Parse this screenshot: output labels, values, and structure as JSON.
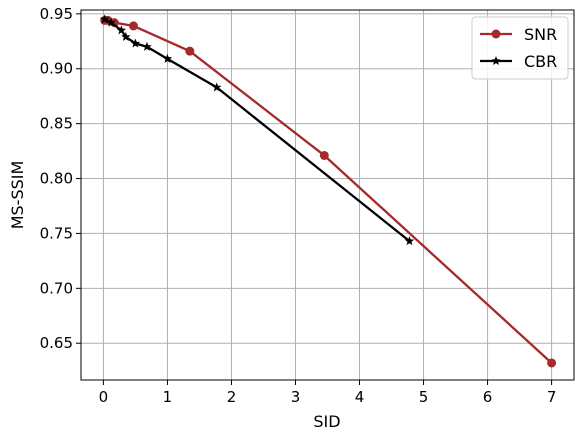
{
  "chart_data": {
    "type": "line",
    "title": "",
    "xlabel": "SID",
    "ylabel": "MS-SSIM",
    "xlim": [
      -0.35,
      7.35
    ],
    "ylim": [
      0.6165,
      0.9535
    ],
    "xticks": [
      0,
      1,
      2,
      3,
      4,
      5,
      6,
      7
    ],
    "xtick_labels": [
      "0",
      "1",
      "2",
      "3",
      "4",
      "5",
      "6",
      "7"
    ],
    "yticks": [
      0.65,
      0.7,
      0.75,
      0.8,
      0.85,
      0.9,
      0.95
    ],
    "ytick_labels": [
      "0.65",
      "0.70",
      "0.75",
      "0.80",
      "0.85",
      "0.90",
      "0.95"
    ],
    "grid": true,
    "legend_position": "top-right",
    "series": [
      {
        "name": "SNR",
        "color": "#a52a2a",
        "marker": "circle",
        "x": [
          0.02,
          0.07,
          0.17,
          0.47,
          1.35,
          3.45,
          7.0
        ],
        "y": [
          0.944,
          0.944,
          0.942,
          0.939,
          0.916,
          0.821,
          0.632
        ]
      },
      {
        "name": "CBR",
        "color": "#000000",
        "marker": "star",
        "x": [
          0.02,
          0.12,
          0.28,
          0.35,
          0.5,
          0.68,
          1.0,
          1.77,
          4.78
        ],
        "y": [
          0.945,
          0.942,
          0.935,
          0.929,
          0.923,
          0.92,
          0.909,
          0.883,
          0.743
        ]
      }
    ]
  }
}
